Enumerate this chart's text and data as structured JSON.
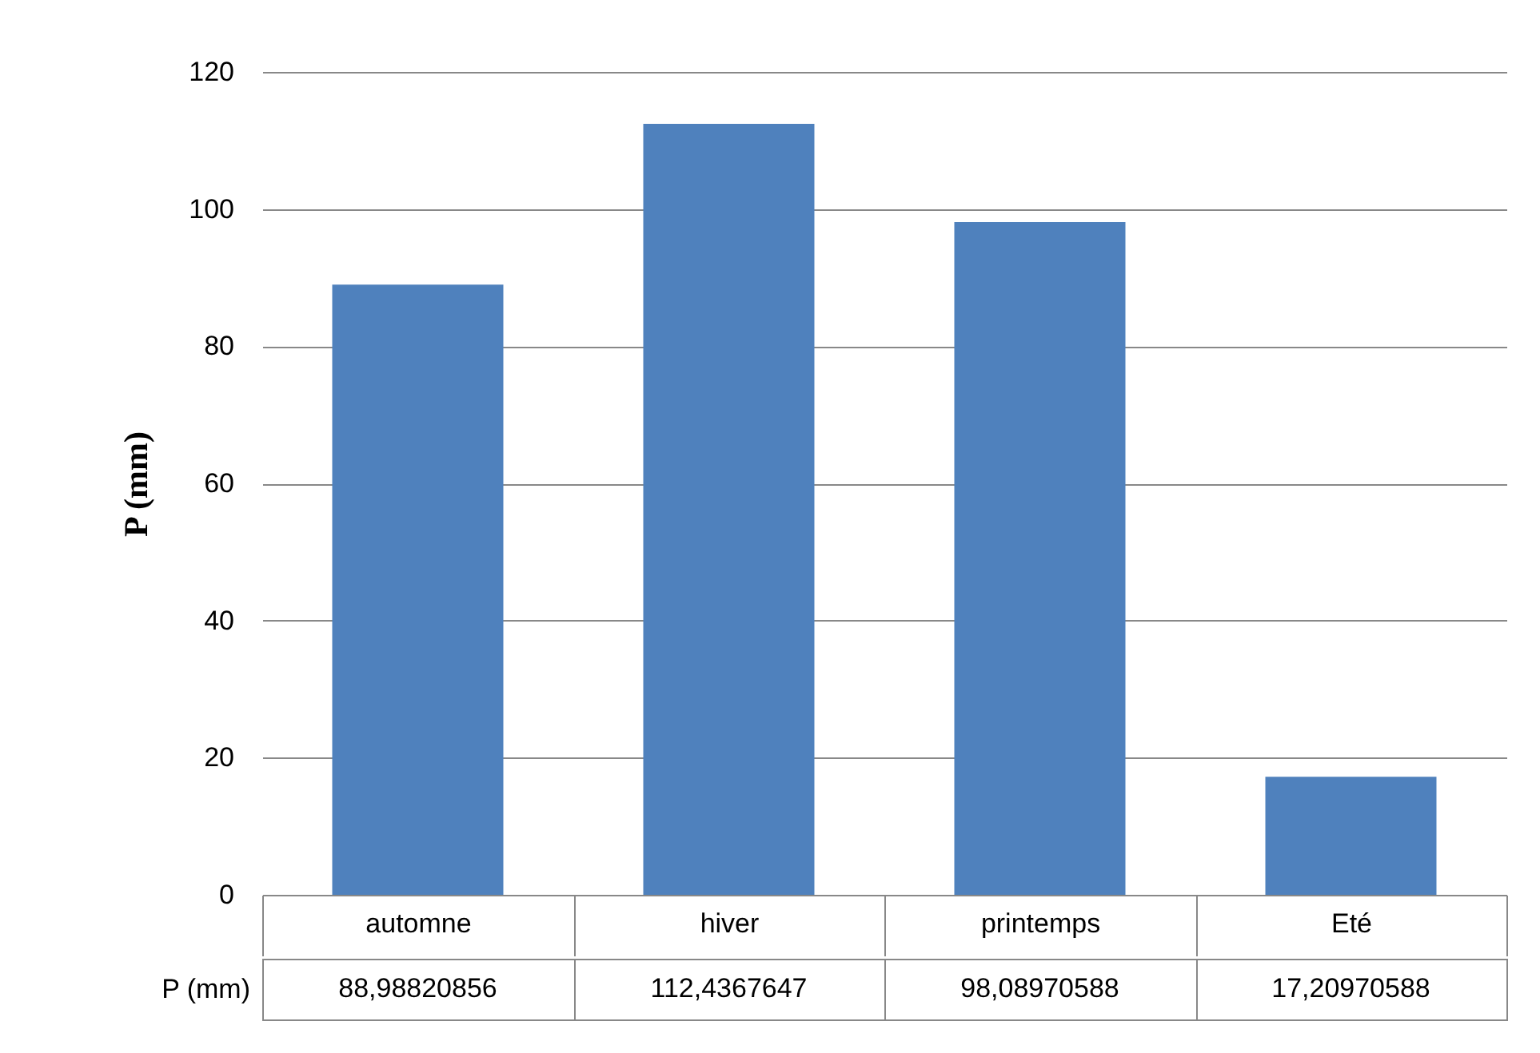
{
  "chart_data": {
    "type": "bar",
    "ylabel": "P (mm)",
    "categories": [
      "automne",
      "hiver",
      "printemps",
      "Eté"
    ],
    "series": [
      {
        "name": "P (mm)",
        "color": "#4f81bd",
        "values": [
          88.98820856,
          112.4367647,
          98.08970588,
          17.20970588
        ],
        "value_labels": [
          "88,98820856",
          "112,4367647",
          "98,08970588",
          "17,20970588"
        ]
      }
    ],
    "ylim": [
      0,
      120
    ],
    "yticks": [
      0,
      20,
      40,
      60,
      80,
      100,
      120
    ],
    "grid": "y"
  }
}
